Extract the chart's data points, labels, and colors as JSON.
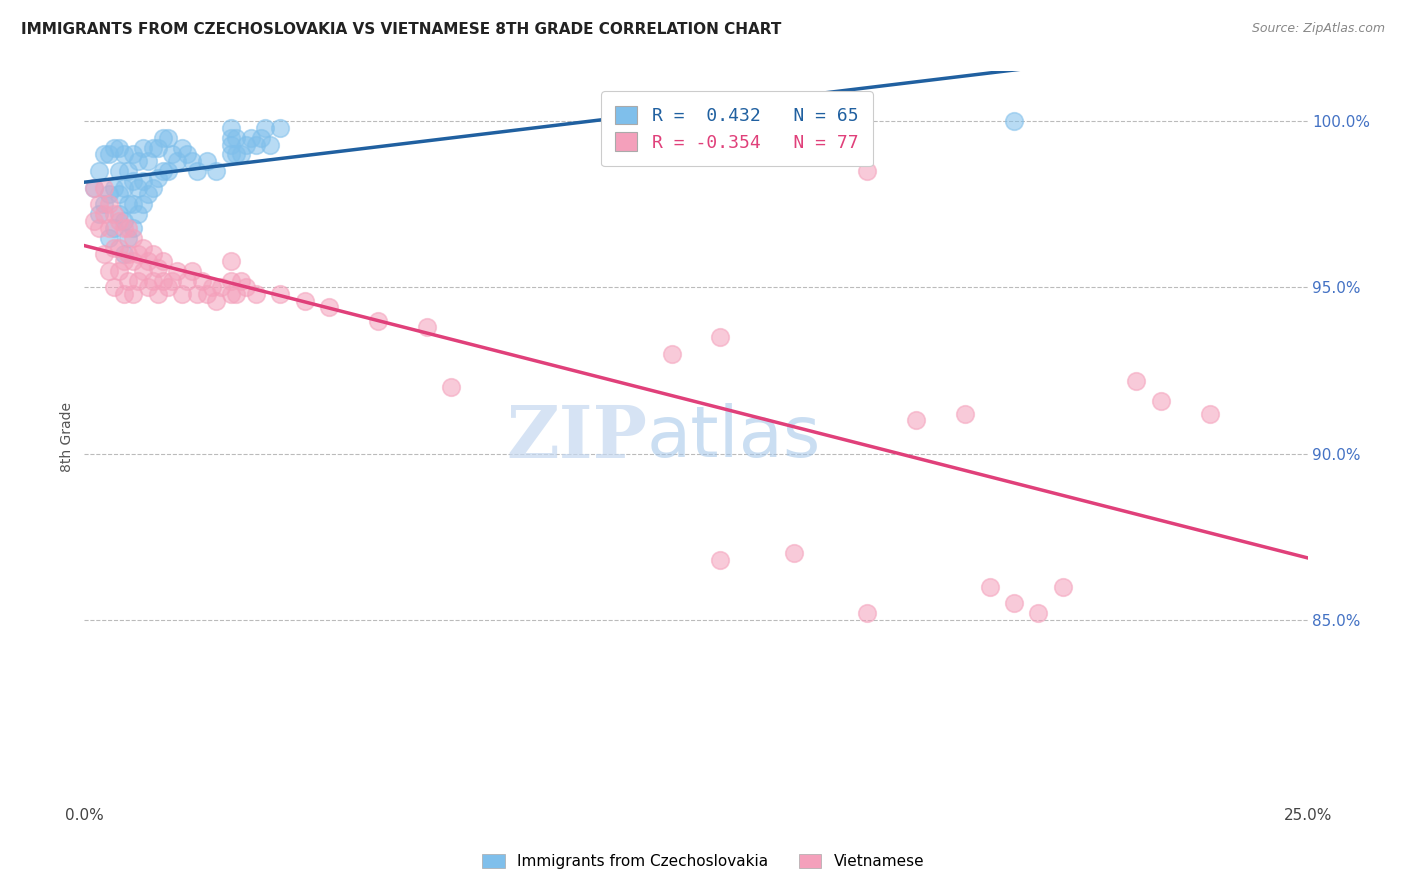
{
  "title": "IMMIGRANTS FROM CZECHOSLOVAKIA VS VIETNAMESE 8TH GRADE CORRELATION CHART",
  "source": "Source: ZipAtlas.com",
  "ylabel": "8th Grade",
  "xlim": [
    0.0,
    0.25
  ],
  "ylim": [
    0.795,
    1.015
  ],
  "legend_line1": "R =  0.432   N = 65",
  "legend_line2": "R = -0.354   N = 77",
  "blue_color": "#7fbfeb",
  "pink_color": "#f4a0bb",
  "blue_line_color": "#2060a0",
  "pink_line_color": "#e0407a",
  "watermark_zip": "ZIP",
  "watermark_atlas": "atlas",
  "blue_scatter_x": [
    0.002,
    0.003,
    0.003,
    0.004,
    0.004,
    0.005,
    0.005,
    0.005,
    0.006,
    0.006,
    0.006,
    0.007,
    0.007,
    0.007,
    0.007,
    0.008,
    0.008,
    0.008,
    0.008,
    0.009,
    0.009,
    0.009,
    0.01,
    0.01,
    0.01,
    0.01,
    0.011,
    0.011,
    0.011,
    0.012,
    0.012,
    0.012,
    0.013,
    0.013,
    0.014,
    0.014,
    0.015,
    0.015,
    0.016,
    0.016,
    0.017,
    0.017,
    0.018,
    0.019,
    0.02,
    0.021,
    0.022,
    0.023,
    0.025,
    0.027,
    0.03,
    0.03,
    0.03,
    0.03,
    0.031,
    0.031,
    0.032,
    0.033,
    0.034,
    0.035,
    0.036,
    0.037,
    0.038,
    0.04,
    0.19
  ],
  "blue_scatter_y": [
    0.98,
    0.972,
    0.985,
    0.975,
    0.99,
    0.965,
    0.978,
    0.99,
    0.968,
    0.98,
    0.992,
    0.972,
    0.978,
    0.985,
    0.992,
    0.96,
    0.97,
    0.98,
    0.99,
    0.965,
    0.975,
    0.985,
    0.968,
    0.975,
    0.982,
    0.99,
    0.972,
    0.98,
    0.988,
    0.975,
    0.982,
    0.992,
    0.978,
    0.988,
    0.98,
    0.992,
    0.983,
    0.992,
    0.985,
    0.995,
    0.985,
    0.995,
    0.99,
    0.988,
    0.992,
    0.99,
    0.988,
    0.985,
    0.988,
    0.985,
    0.99,
    0.993,
    0.995,
    0.998,
    0.99,
    0.995,
    0.99,
    0.993,
    0.995,
    0.993,
    0.995,
    0.998,
    0.993,
    0.998,
    1.0
  ],
  "pink_scatter_x": [
    0.002,
    0.002,
    0.003,
    0.003,
    0.004,
    0.004,
    0.004,
    0.005,
    0.005,
    0.005,
    0.006,
    0.006,
    0.006,
    0.007,
    0.007,
    0.007,
    0.008,
    0.008,
    0.008,
    0.009,
    0.009,
    0.009,
    0.01,
    0.01,
    0.01,
    0.011,
    0.011,
    0.012,
    0.012,
    0.013,
    0.013,
    0.014,
    0.014,
    0.015,
    0.015,
    0.016,
    0.016,
    0.017,
    0.018,
    0.019,
    0.02,
    0.021,
    0.022,
    0.023,
    0.024,
    0.025,
    0.026,
    0.027,
    0.028,
    0.03,
    0.03,
    0.03,
    0.031,
    0.032,
    0.033,
    0.035,
    0.04,
    0.045,
    0.05,
    0.06,
    0.07,
    0.075,
    0.12,
    0.13,
    0.13,
    0.145,
    0.16,
    0.16,
    0.17,
    0.18,
    0.185,
    0.19,
    0.195,
    0.2,
    0.215,
    0.22,
    0.23
  ],
  "pink_scatter_y": [
    0.97,
    0.98,
    0.968,
    0.975,
    0.96,
    0.972,
    0.98,
    0.955,
    0.968,
    0.975,
    0.95,
    0.962,
    0.972,
    0.955,
    0.962,
    0.97,
    0.948,
    0.958,
    0.968,
    0.952,
    0.96,
    0.968,
    0.948,
    0.958,
    0.965,
    0.952,
    0.96,
    0.955,
    0.962,
    0.95,
    0.958,
    0.952,
    0.96,
    0.948,
    0.956,
    0.952,
    0.958,
    0.95,
    0.952,
    0.955,
    0.948,
    0.952,
    0.955,
    0.948,
    0.952,
    0.948,
    0.95,
    0.946,
    0.95,
    0.948,
    0.952,
    0.958,
    0.948,
    0.952,
    0.95,
    0.948,
    0.948,
    0.946,
    0.944,
    0.94,
    0.938,
    0.92,
    0.93,
    0.935,
    0.868,
    0.87,
    0.852,
    0.985,
    0.91,
    0.912,
    0.86,
    0.855,
    0.852,
    0.86,
    0.922,
    0.916,
    0.912
  ]
}
